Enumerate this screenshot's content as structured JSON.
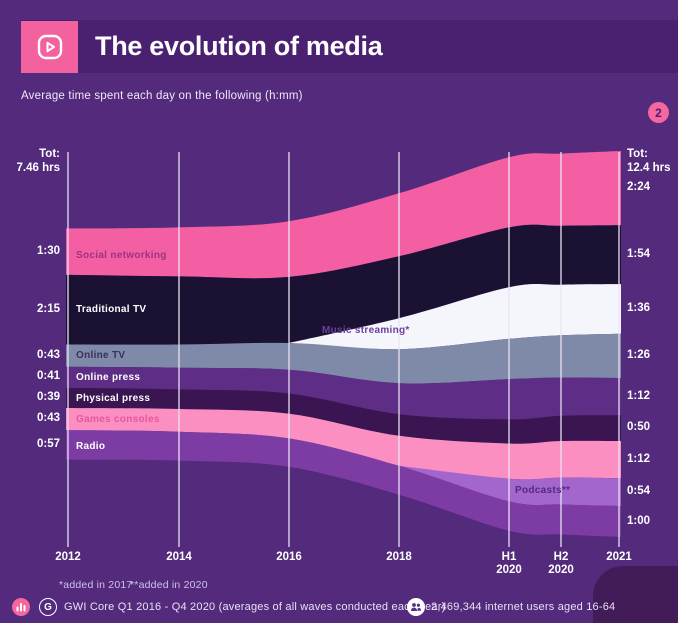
{
  "header": {
    "title": "The evolution of media",
    "badge": "2"
  },
  "subtitle": "Average time spent each day on the following (h:mm)",
  "footnotes": {
    "note1": "*added in 2017",
    "note2": "**added in 2020"
  },
  "footer": {
    "gwi_letter": "G",
    "source": "GWI Core Q1 2016 - Q4 2020 (averages of all waves conducted each year)",
    "audience": "2,469,344 internet users aged 16-64"
  },
  "colors": {
    "background": "#542a7c",
    "title_band": "#4a2070",
    "accent_pink": "#f4619f",
    "gridline": "#eae4f4"
  },
  "chart_data": {
    "type": "area",
    "subtype": "centered-streamgraph",
    "title": "The evolution of media",
    "subtitle": "Average time spent each day on the following (h:mm)",
    "unit": "minutes per day (shown as h:mm)",
    "x_labels": [
      "2012",
      "2014",
      "2016",
      "2018",
      "H1\n2020",
      "H2\n2020",
      "2021"
    ],
    "totals": {
      "left": [
        "Tot:",
        "7.46 hrs"
      ],
      "right": [
        "Tot:",
        "12.4 hrs"
      ]
    },
    "series": [
      {
        "name": "Social networking",
        "color": "#f45fa3",
        "label_color": "#9e3380",
        "values": [
          90,
          95,
          108,
          122,
          136,
          140,
          144
        ],
        "left": "1:30",
        "right": "2:24"
      },
      {
        "name": "Traditional TV",
        "color": "#1b1233",
        "label_color": "#ffffff",
        "values": [
          135,
          132,
          128,
          120,
          116,
          114,
          114
        ],
        "left": "2:15",
        "right": "1:54"
      },
      {
        "name": "Music streaming*",
        "color": "#f5f6fc",
        "label_color": "#6b3f9d",
        "values": [
          0,
          0,
          0,
          60,
          100,
          98,
          96
        ],
        "left": null,
        "right": "1:36"
      },
      {
        "name": "Online TV",
        "color": "#7e8aa8",
        "label_color": "#3c2f60",
        "values": [
          43,
          45,
          52,
          66,
          78,
          82,
          86
        ],
        "left": "0:43",
        "right": "1:26"
      },
      {
        "name": "Online press",
        "color": "#5e2d86",
        "label_color": "#ffffff",
        "values": [
          41,
          42,
          46,
          60,
          78,
          74,
          72
        ],
        "left": "0:41",
        "right": "1:12"
      },
      {
        "name": "Physical press",
        "color": "#3a1551",
        "label_color": "#ffffff",
        "values": [
          39,
          38,
          39,
          42,
          47,
          49,
          50
        ],
        "left": "0:39",
        "right": "0:50"
      },
      {
        "name": "Games consoles",
        "color": "#fb8fc2",
        "label_color": "#e8559e",
        "values": [
          43,
          44,
          48,
          58,
          68,
          71,
          72
        ],
        "left": "0:43",
        "right": "1:12"
      },
      {
        "name": "Podcasts**",
        "color": "#a266cc",
        "label_color": "#532a7d",
        "values": [
          0,
          0,
          0,
          0,
          44,
          52,
          54
        ],
        "left": null,
        "right": "0:54"
      },
      {
        "name": "Radio",
        "color": "#7d3ca4",
        "label_color": "#ffffff",
        "values": [
          57,
          56,
          55,
          56,
          57,
          58,
          60
        ],
        "left": "0:57",
        "right": "1:00"
      }
    ],
    "legend_position": "in-chart labels",
    "grid": "vertical gridlines at each x label"
  }
}
